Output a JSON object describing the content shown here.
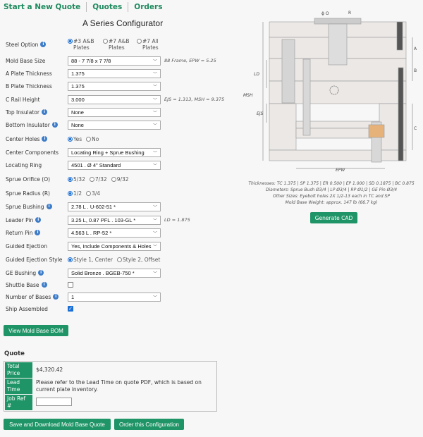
{
  "nav": {
    "items": [
      "Start a New Quote",
      "Quotes",
      "Orders"
    ]
  },
  "title": "A Series Configurator",
  "form": {
    "steel_option": {
      "label": "Steel Option",
      "options": [
        "#3 A&B Plates",
        "#7 A&B Plates",
        "#7 All Plates"
      ],
      "selected": "#3 A&B Plates"
    },
    "mold_base_size": {
      "label": "Mold Base Size",
      "value": "88 - 7 7/8 x 7 7/8",
      "note": "88 Frame, EPW = 5.25"
    },
    "a_plate": {
      "label": "A Plate Thickness",
      "value": "1.375"
    },
    "b_plate": {
      "label": "B Plate Thickness",
      "value": "1.375"
    },
    "c_rail": {
      "label": "C Rail Height",
      "value": "3.000",
      "note": "EJS = 1.313, MSH = 9.375"
    },
    "top_insulator": {
      "label": "Top Insulator",
      "value": "None"
    },
    "bottom_insulator": {
      "label": "Bottom Insulator",
      "value": "None"
    },
    "center_holes": {
      "label": "Center Holes",
      "options": [
        "Yes",
        "No"
      ],
      "selected": "Yes"
    },
    "center_components": {
      "label": "Center Components",
      "value": "Locating Ring + Sprue Bushing"
    },
    "locating_ring": {
      "label": "Locating Ring",
      "value": "4501 . Ø 4\" Standard"
    },
    "sprue_orifice": {
      "label": "Sprue Orifice (O)",
      "options": [
        "5/32",
        "7/32",
        "9/32"
      ],
      "selected": "5/32"
    },
    "sprue_radius": {
      "label": "Sprue Radius (R)",
      "options": [
        "1/2",
        "3/4"
      ],
      "selected": "1/2"
    },
    "sprue_bushing": {
      "label": "Sprue Bushing",
      "value": "2.78 L . U-602-51 *"
    },
    "leader_pin": {
      "label": "Leader Pin",
      "value": "3.25 L, 0.87 PFL . 103-GL *",
      "note": "LD = 1.875"
    },
    "return_pin": {
      "label": "Return Pin",
      "value": "4.563 L . RP-52 *"
    },
    "guided_ejection": {
      "label": "Guided Ejection",
      "value": "Yes, Include Components & Holes"
    },
    "guided_ejection_style": {
      "label": "Guided Ejection Style",
      "options": [
        "Style 1, Center",
        "Style 2, Offset"
      ],
      "selected": "Style 1, Center"
    },
    "ge_bushing": {
      "label": "GE Bushing",
      "value": "Solid Bronze . BGEB-750 *"
    },
    "shuttle_base": {
      "label": "Shuttle Base",
      "checked": false
    },
    "number_of_bases": {
      "label": "Number of Bases",
      "value": "1"
    },
    "ship_assembled": {
      "label": "Ship Assembled",
      "checked": true
    }
  },
  "bom_button": "View Mold Base BOM",
  "drawing": {
    "labels": {
      "o": "ϕ O",
      "r": "R",
      "a": "A",
      "b": "B",
      "c": "C",
      "ld": "LD",
      "msh": "MSH",
      "ejs": "EJS",
      "epw": "EPW"
    }
  },
  "specs": [
    "Thicknesses: TC 1.375 | SP 1.375 | ER 0.500 | EP 1.000 | SD 0.1875 | BC 0.875",
    "Diameters: Sprue Bush Ø3/4 | LP Ø3/4 | RP Ø1/2 | GE Pin Ø3/4",
    "Other Sizes: Eyebolt holes 2X 1/2-13 each in TC and SP",
    "Mold Base Weight: approx. 147 lb (66.7 kg)"
  ],
  "generate_cad": "Generate CAD",
  "quote": {
    "heading": "Quote",
    "total_price_label": "Total Price",
    "total_price": "$4,320.42",
    "lead_time_label": "Lead Time",
    "lead_time": "Please refer to the Lead Time on quote PDF, which is based on current plate inventory.",
    "job_ref_label": "Job Ref #",
    "job_ref": ""
  },
  "save_button": "Save and Download Mold Base Quote",
  "order_button": "Order this Configuration",
  "colors": {
    "accent": "#1f9466",
    "nav": "#1f8a5e",
    "info": "#3d7cc9"
  }
}
